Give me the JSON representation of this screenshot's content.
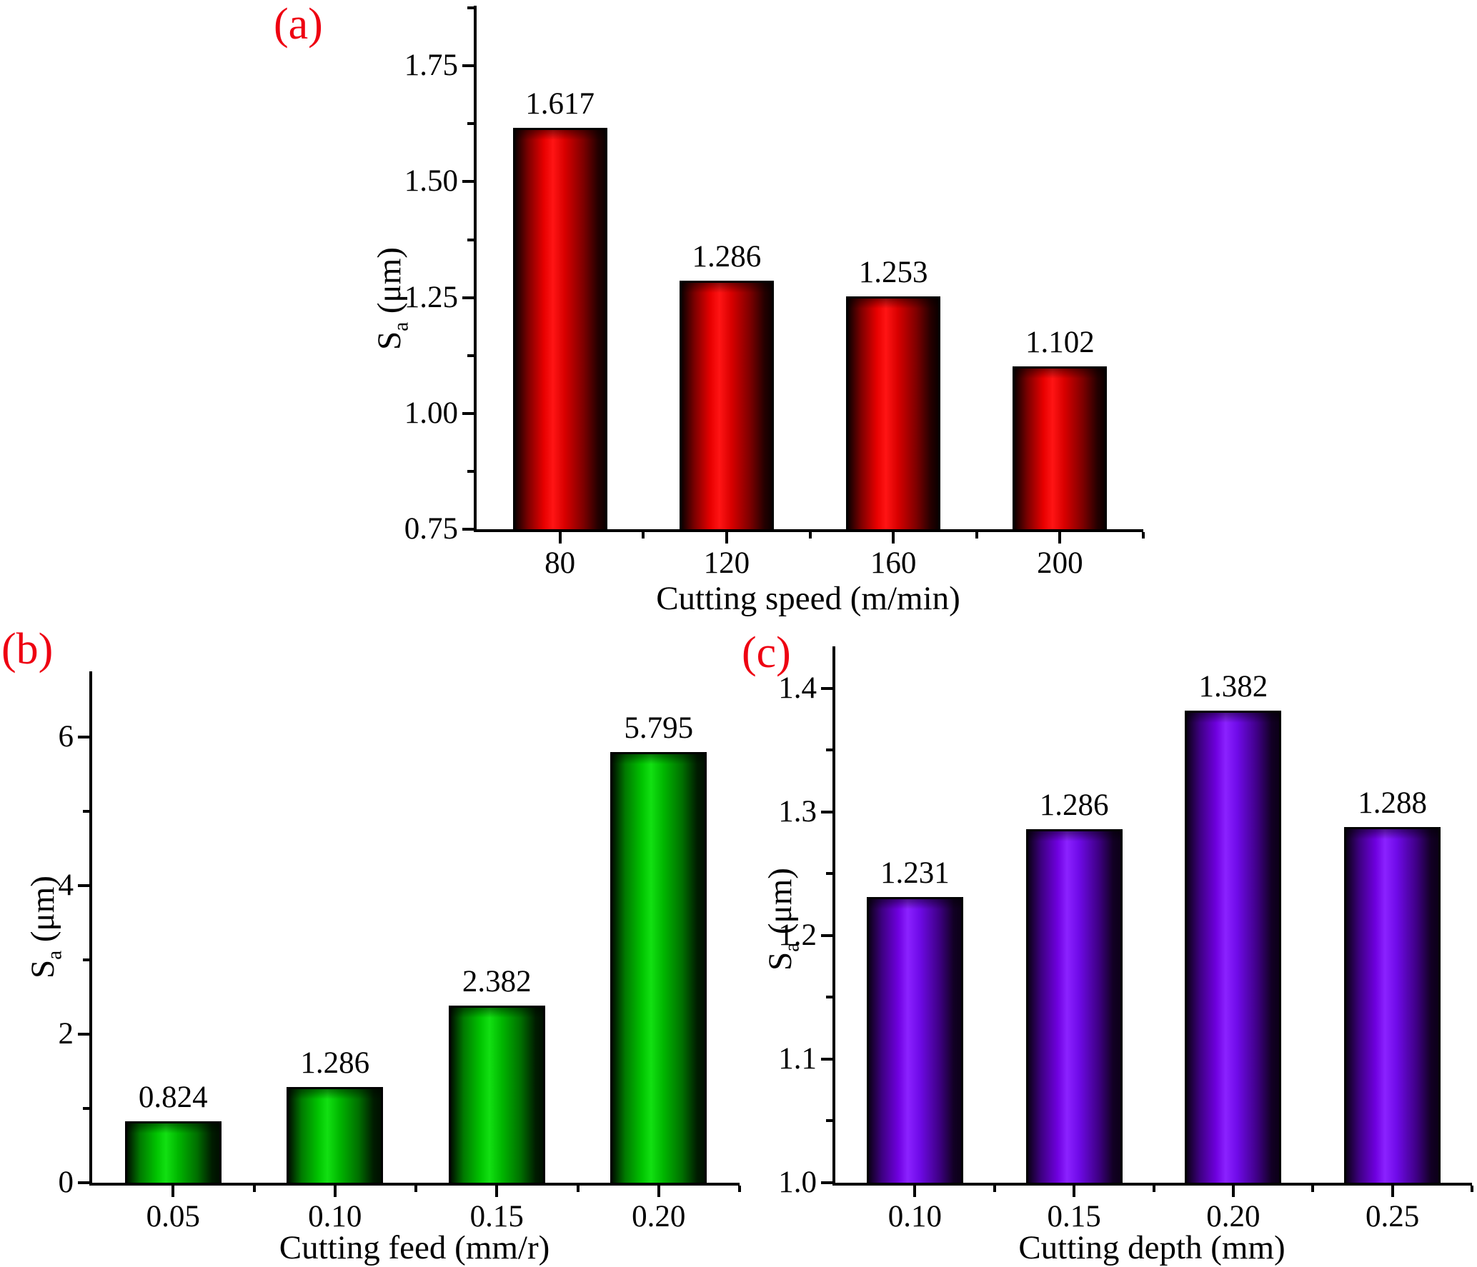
{
  "figure": {
    "background": "#ffffff",
    "panel_label_color": "#ee0011",
    "axis_color": "#000000",
    "text_color": "#000000"
  },
  "chart_data": [
    {
      "type": "bar",
      "panel": "(a)",
      "ylabel": "Sa (μm)",
      "ylabel_main": "S",
      "ylabel_sub": "a",
      "ylabel_unit": " (μm)",
      "xlabel": "Cutting speed (m/min)",
      "categories": [
        "80",
        "120",
        "160",
        "200"
      ],
      "values": [
        1.617,
        1.286,
        1.253,
        1.102
      ],
      "value_labels": [
        "1.617",
        "1.286",
        "1.253",
        "1.102"
      ],
      "ylim": [
        0.75,
        1.88
      ],
      "yticks": [
        0.75,
        1.0,
        1.25,
        1.5,
        1.75
      ],
      "ytick_labels": [
        "0.75",
        "1.00",
        "1.25",
        "1.50",
        "1.75"
      ],
      "yticks_minor": [
        0.875,
        1.125,
        1.375,
        1.625,
        1.875
      ],
      "bar_color_name": "red",
      "bar_highlight_hex": "#ff1414",
      "grid": false,
      "legend": "none"
    },
    {
      "type": "bar",
      "panel": "(b)",
      "ylabel": "Sa (μm)",
      "ylabel_main": "S",
      "ylabel_sub": "a",
      "ylabel_unit": " (μm)",
      "xlabel": "Cutting feed (mm/r)",
      "categories": [
        "0.05",
        "0.10",
        "0.15",
        "0.20"
      ],
      "values": [
        0.824,
        1.286,
        2.382,
        5.795
      ],
      "value_labels": [
        "0.824",
        "1.286",
        "2.382",
        "5.795"
      ],
      "ylim": [
        0,
        6.88
      ],
      "yticks": [
        0,
        2,
        4,
        6
      ],
      "ytick_labels": [
        "0",
        "2",
        "4",
        "6"
      ],
      "yticks_minor": [
        1,
        3,
        5
      ],
      "bar_color_name": "green",
      "bar_highlight_hex": "#12e012",
      "grid": false,
      "legend": "none"
    },
    {
      "type": "bar",
      "panel": "(c)",
      "ylabel": "Sa (μm)",
      "ylabel_main": "S",
      "ylabel_sub": "a",
      "ylabel_unit": " (μm)",
      "xlabel": "Cutting depth (mm)",
      "categories": [
        "0.10",
        "0.15",
        "0.20",
        "0.25"
      ],
      "values": [
        1.231,
        1.286,
        1.382,
        1.288
      ],
      "value_labels": [
        "1.231",
        "1.286",
        "1.382",
        "1.288"
      ],
      "ylim": [
        1.0,
        1.434
      ],
      "yticks": [
        1.0,
        1.1,
        1.2,
        1.3,
        1.4
      ],
      "ytick_labels": [
        "1.0",
        "1.1",
        "1.2",
        "1.3",
        "1.4"
      ],
      "yticks_minor": [
        1.05,
        1.15,
        1.25,
        1.35
      ],
      "bar_color_name": "purple",
      "bar_highlight_hex": "#8b22ff",
      "grid": false,
      "legend": "none"
    }
  ]
}
